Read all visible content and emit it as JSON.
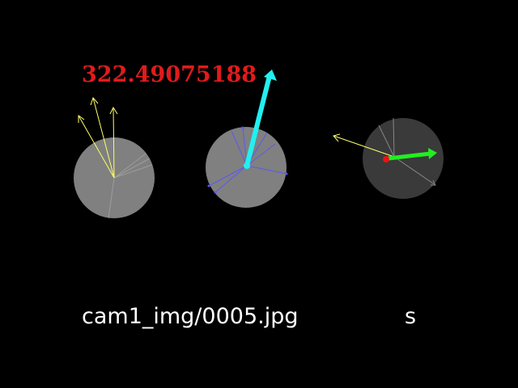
{
  "overlay": {
    "value": "322.49075188",
    "image_path": "cam1_img/0005.jpg",
    "key": "s"
  },
  "colors": {
    "background": "#000000",
    "value_text": "#e01b1b",
    "label_text": "#ffffff",
    "sphere_light": "#808080",
    "sphere_dark": "#3a3a3a",
    "yellow_rays": "#ffff66",
    "blue_rays": "#5555ff",
    "cyan_arrow": "#22f0f0",
    "green_arrow": "#22ee22",
    "red_dot": "#ee1111"
  }
}
